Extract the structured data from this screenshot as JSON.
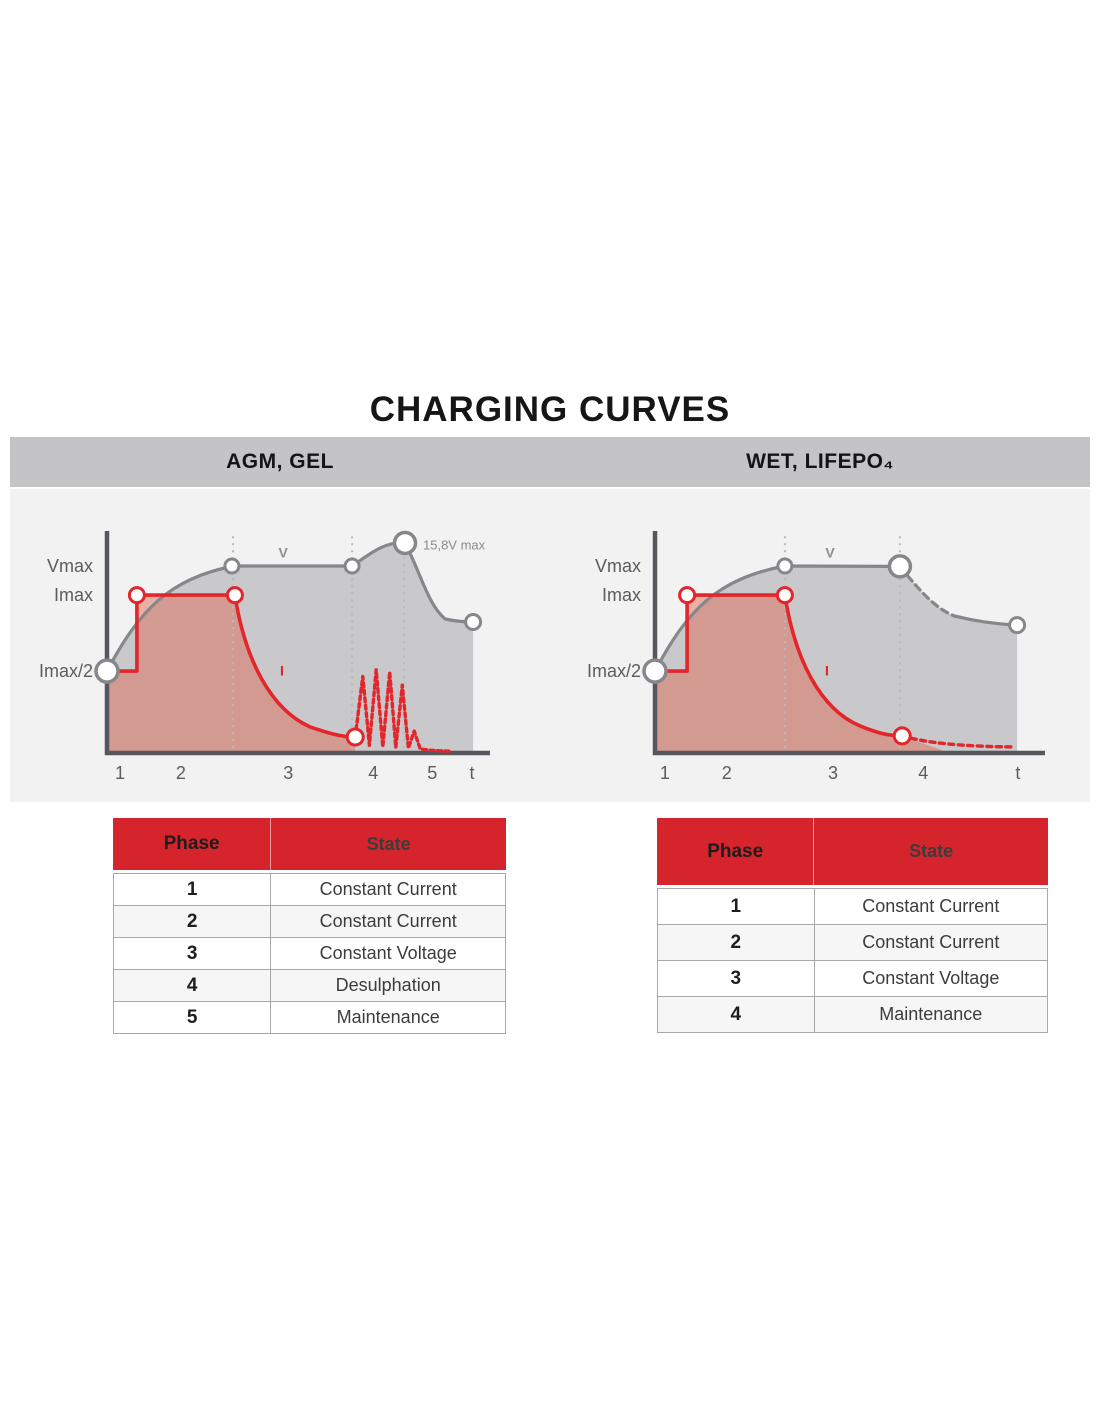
{
  "title": "CHARGING CURVES",
  "colors": {
    "accent_red": "#d6242c",
    "curve_red": "#e2262b",
    "curve_gray": "#87878b",
    "gray_fill": "#c9c9cc",
    "red_fill": "rgba(221,98,70,0.45)",
    "panel_header_bg": "#c4c4c6",
    "chart_bg": "#f2f2f3"
  },
  "chart_data": [
    {
      "type": "line",
      "title": "AGM, GEL",
      "x_axis_label": "t",
      "x_ticks": [
        {
          "label": "1",
          "x": 3.4
        },
        {
          "label": "2",
          "x": 19.3
        },
        {
          "label": "3",
          "x": 47.3
        },
        {
          "label": "4",
          "x": 69.5
        },
        {
          "label": "5",
          "x": 84.9
        },
        {
          "label": "t",
          "x": 95.3
        }
      ],
      "y_ticks": [
        {
          "label": "Vmax",
          "y": 85.4
        },
        {
          "label": "Imax",
          "y": 72.1
        },
        {
          "label": "Imax/2",
          "y": 37.4
        }
      ],
      "guides_x": [
        32.9,
        64.0,
        77.5
      ],
      "series": [
        {
          "name": "voltage-area",
          "kind": "area",
          "fill": "#c9c9cc",
          "segments": [
            [
              "M",
              0,
              37.4
            ],
            [
              "C",
              8.6,
              65.8,
              16.4,
              79.5,
              33.0,
              85.4
            ],
            [
              "L",
              64.0,
              85.4
            ],
            [
              "C",
              68.7,
              90.9,
              72.6,
              96.8,
              77.8,
              95.9
            ],
            [
              "C",
              81.7,
              83.1,
              83.8,
              67.6,
              88.3,
              61.2
            ],
            [
              "C",
              91.0,
              60.2,
              93.0,
              59.8,
              95.6,
              59.8
            ]
          ],
          "close_to_baseline": true
        },
        {
          "name": "current-area",
          "kind": "area",
          "fill": "rgba(221,98,70,0.45)",
          "segments": [
            [
              "M",
              0,
              37.4
            ],
            [
              "L",
              7.8,
              37.4
            ],
            [
              "L",
              7.8,
              72.1
            ],
            [
              "L",
              33.4,
              72.1
            ],
            [
              "C",
              36.0,
              42.9,
              42.6,
              20.1,
              53.0,
              11.9
            ],
            [
              "C",
              57.5,
              9.3,
              61.0,
              7.3,
              64.8,
              7.3
            ]
          ],
          "close_to_baseline": true
        },
        {
          "name": "voltage-line",
          "kind": "line",
          "color": "#87878b",
          "width": 3.2,
          "segments": [
            [
              "M",
              0,
              37.4
            ],
            [
              "C",
              8.6,
              65.8,
              16.4,
              79.5,
              33.0,
              85.4
            ],
            [
              "L",
              64.0,
              85.4
            ],
            [
              "C",
              68.7,
              90.9,
              72.6,
              96.8,
              77.8,
              95.9
            ],
            [
              "C",
              81.7,
              83.1,
              83.8,
              67.6,
              88.3,
              61.2
            ],
            [
              "C",
              91.0,
              60.2,
              93.0,
              59.8,
              95.6,
              59.8
            ]
          ]
        },
        {
          "name": "current-line",
          "kind": "line",
          "color": "#e2262b",
          "width": 3.6,
          "segments": [
            [
              "M",
              0,
              37.4
            ],
            [
              "L",
              7.8,
              37.4
            ],
            [
              "L",
              7.8,
              72.1
            ],
            [
              "L",
              33.4,
              72.1
            ],
            [
              "C",
              36.0,
              42.9,
              42.6,
              20.1,
              53.0,
              11.9
            ],
            [
              "C",
              57.5,
              9.3,
              61.0,
              7.3,
              64.8,
              7.3
            ]
          ]
        },
        {
          "name": "desulphation-pulses",
          "kind": "dashed-line",
          "color": "#e2262b",
          "width": 3.4,
          "dash": "4 3.5",
          "segments": [
            [
              "M",
              64.8,
              7.3
            ],
            [
              "L",
              66.8,
              35
            ],
            [
              "L",
              68.5,
              3.5
            ],
            [
              "L",
              70.3,
              38
            ],
            [
              "L",
              72.0,
              2.8
            ],
            [
              "L",
              73.8,
              37
            ],
            [
              "L",
              75.4,
              2.5
            ],
            [
              "L",
              77.1,
              31
            ],
            [
              "L",
              78.7,
              2.2
            ],
            [
              "L",
              80.2,
              10
            ],
            [
              "L",
              81.8,
              1.8
            ],
            [
              "L",
              84.5,
              1.3
            ],
            [
              "L",
              87.0,
              1.0
            ],
            [
              "L",
              89.6,
              0.8
            ]
          ]
        }
      ],
      "markers": [
        {
          "x": 0,
          "y": 37.4,
          "r": 11,
          "color": "#87878b",
          "w": 3.5
        },
        {
          "x": 7.8,
          "y": 72.1,
          "r": 7.5,
          "color": "#e2262b",
          "w": 3
        },
        {
          "x": 33.4,
          "y": 72.1,
          "r": 7.5,
          "color": "#e2262b",
          "w": 3
        },
        {
          "x": 32.6,
          "y": 85.4,
          "r": 7,
          "color": "#87878b",
          "w": 3
        },
        {
          "x": 64.0,
          "y": 85.4,
          "r": 7,
          "color": "#87878b",
          "w": 3
        },
        {
          "x": 77.8,
          "y": 95.9,
          "r": 10.5,
          "color": "#87878b",
          "w": 3.5
        },
        {
          "x": 95.6,
          "y": 59.8,
          "r": 7.5,
          "color": "#87878b",
          "w": 3
        },
        {
          "x": 64.8,
          "y": 7.3,
          "r": 8,
          "color": "#e2262b",
          "w": 3
        }
      ],
      "annotations": [
        {
          "text": "V",
          "x": 46.0,
          "y": 91.5,
          "color": "#8e8e90",
          "size": 14,
          "anchor": "middle"
        },
        {
          "text": "I",
          "x": 45.7,
          "y": 37.5,
          "color": "#d8232b",
          "size": 14,
          "anchor": "middle"
        },
        {
          "text": "15,8V max",
          "x": 82.5,
          "y": 94.8,
          "color": "#8a8a8a",
          "size": 13,
          "anchor": "start"
        }
      ]
    },
    {
      "type": "line",
      "title": "WET, LIFEPO₄",
      "x_axis_label": "t",
      "x_ticks": [
        {
          "label": "1",
          "x": 2.6
        },
        {
          "label": "2",
          "x": 18.8
        },
        {
          "label": "3",
          "x": 46.6
        },
        {
          "label": "4",
          "x": 70.2
        },
        {
          "label": "t",
          "x": 95.0
        }
      ],
      "y_ticks": [
        {
          "label": "Vmax",
          "y": 85.4
        },
        {
          "label": "Imax",
          "y": 72.1
        },
        {
          "label": "Imax/2",
          "y": 37.4
        }
      ],
      "guides_x": [
        34.0,
        64.1
      ],
      "series": [
        {
          "name": "voltage-area",
          "kind": "area",
          "fill": "#c9c9cc",
          "segments": [
            [
              "M",
              0,
              37.4
            ],
            [
              "C",
              8.6,
              65.8,
              16.4,
              79.5,
              34.0,
              85.4
            ],
            [
              "L",
              64.1,
              85.2
            ],
            [
              "C",
              68.5,
              76.0,
              73.0,
              66.0,
              78.5,
              62.5
            ],
            [
              "C",
              83.5,
              60.3,
              89.5,
              58.8,
              94.8,
              58.4
            ]
          ],
          "close_to_baseline": true
        },
        {
          "name": "current-area",
          "kind": "area",
          "fill": "rgba(221,98,70,0.45)",
          "segments": [
            [
              "M",
              0,
              37.4
            ],
            [
              "L",
              8.4,
              37.4
            ],
            [
              "L",
              8.4,
              72.1
            ],
            [
              "L",
              34.0,
              72.1
            ],
            [
              "C",
              36.6,
              42.9,
              43.2,
              20.1,
              53.6,
              12.4
            ],
            [
              "C",
              57.8,
              9.4,
              61.0,
              7.8,
              64.7,
              7.8
            ],
            [
              "C",
              69.0,
              5.2,
              72.0,
              3.2,
              75.0,
              1.4
            ]
          ],
          "close_to_baseline": true
        },
        {
          "name": "voltage-line-solid",
          "kind": "line",
          "color": "#87878b",
          "width": 3.2,
          "segments": [
            [
              "M",
              0,
              37.4
            ],
            [
              "C",
              8.6,
              65.8,
              16.4,
              79.5,
              34.0,
              85.4
            ],
            [
              "L",
              64.1,
              85.2
            ]
          ]
        },
        {
          "name": "voltage-line-dashed",
          "kind": "dashed-line",
          "color": "#87878b",
          "width": 3.2,
          "dash": "7 5",
          "segments": [
            [
              "M",
              64.1,
              85.2
            ],
            [
              "C",
              68.5,
              76.0,
              73.0,
              66.0,
              78.5,
              62.5
            ]
          ]
        },
        {
          "name": "voltage-line-solid-tail",
          "kind": "line",
          "color": "#87878b",
          "width": 3.2,
          "segments": [
            [
              "M",
              78.5,
              62.5
            ],
            [
              "C",
              83.5,
              60.3,
              89.5,
              58.8,
              94.8,
              58.4
            ]
          ]
        },
        {
          "name": "current-line",
          "kind": "line",
          "color": "#e2262b",
          "width": 3.6,
          "segments": [
            [
              "M",
              0,
              37.4
            ],
            [
              "L",
              8.4,
              37.4
            ],
            [
              "L",
              8.4,
              72.1
            ],
            [
              "L",
              34.0,
              72.1
            ],
            [
              "C",
              36.6,
              42.9,
              43.2,
              20.1,
              53.6,
              12.4
            ],
            [
              "C",
              57.8,
              9.4,
              61.0,
              7.8,
              64.7,
              7.8
            ]
          ]
        },
        {
          "name": "current-line-dashed",
          "kind": "dashed-line",
          "color": "#e2262b",
          "width": 3.4,
          "dash": "5 4.5",
          "segments": [
            [
              "M",
              64.7,
              7.8
            ],
            [
              "C",
              71.0,
              4.6,
              80.0,
              3.0,
              93.5,
              2.8
            ]
          ]
        }
      ],
      "markers": [
        {
          "x": 0,
          "y": 37.4,
          "r": 11,
          "color": "#87878b",
          "w": 3.5
        },
        {
          "x": 8.4,
          "y": 72.1,
          "r": 7.5,
          "color": "#e2262b",
          "w": 3
        },
        {
          "x": 34.0,
          "y": 72.1,
          "r": 7.5,
          "color": "#e2262b",
          "w": 3
        },
        {
          "x": 34.0,
          "y": 85.4,
          "r": 7,
          "color": "#87878b",
          "w": 3
        },
        {
          "x": 64.1,
          "y": 85.2,
          "r": 10.5,
          "color": "#87878b",
          "w": 3.5
        },
        {
          "x": 64.7,
          "y": 7.8,
          "r": 8,
          "color": "#e2262b",
          "w": 3
        },
        {
          "x": 94.8,
          "y": 58.4,
          "r": 7.5,
          "color": "#87878b",
          "w": 3
        }
      ],
      "annotations": [
        {
          "text": "V",
          "x": 45.8,
          "y": 91.5,
          "color": "#8e8e90",
          "size": 14,
          "anchor": "middle"
        },
        {
          "text": "I",
          "x": 45.0,
          "y": 37.5,
          "color": "#d8232b",
          "size": 14,
          "anchor": "middle"
        }
      ]
    }
  ],
  "tables": [
    {
      "name": "agm-gel-phases",
      "columns": [
        "Phase",
        "State"
      ],
      "rows": [
        [
          "1",
          "Constant Current"
        ],
        [
          "2",
          "Constant Current"
        ],
        [
          "3",
          "Constant Voltage"
        ],
        [
          "4",
          "Desulphation"
        ],
        [
          "5",
          "Maintenance"
        ]
      ]
    },
    {
      "name": "wet-lifepo4-phases",
      "columns": [
        "Phase",
        "State"
      ],
      "rows": [
        [
          "1",
          "Constant Current"
        ],
        [
          "2",
          "Constant Current"
        ],
        [
          "3",
          "Constant Voltage"
        ],
        [
          "4",
          "Maintenance"
        ]
      ]
    }
  ]
}
